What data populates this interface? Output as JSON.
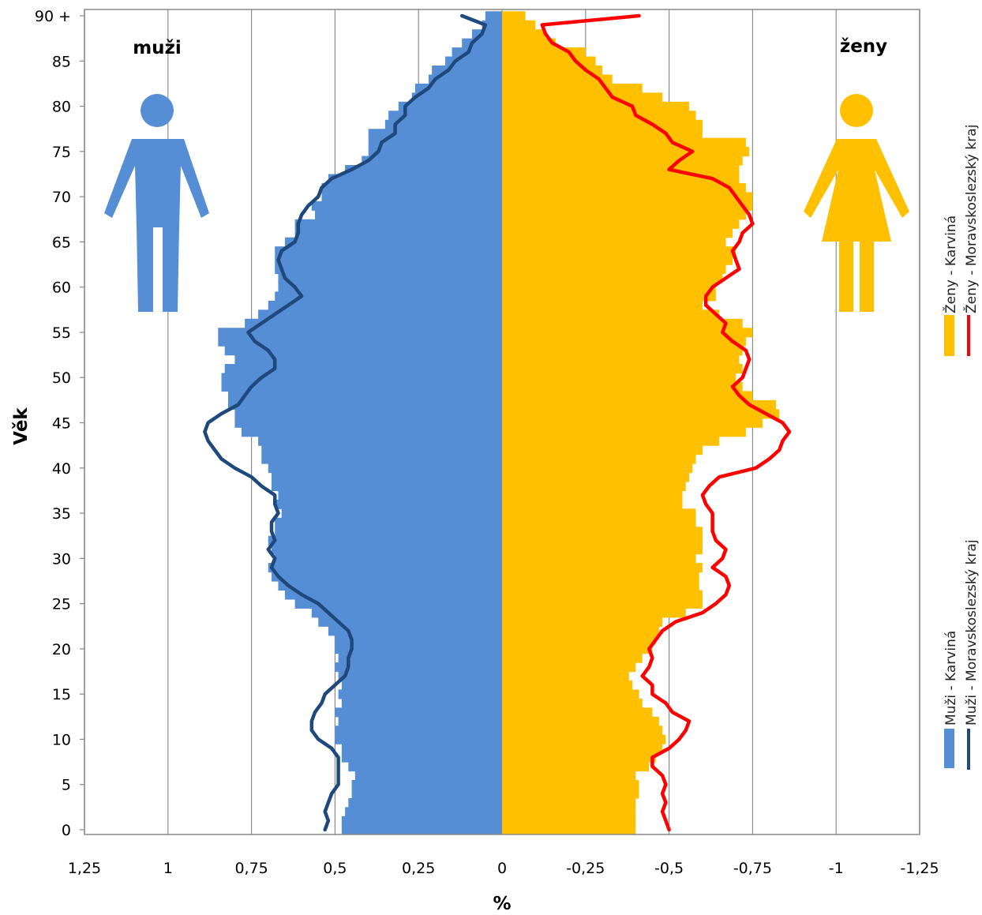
{
  "chart_data": {
    "type": "bar",
    "orientation": "horizontal",
    "ylabel": "Věk",
    "xlabel": "%",
    "left_label": "muži",
    "right_label": "ženy",
    "y_ticks": [
      {
        "age": 0,
        "label": "0"
      },
      {
        "age": 5,
        "label": "5"
      },
      {
        "age": 10,
        "label": "10"
      },
      {
        "age": 15,
        "label": "15"
      },
      {
        "age": 20,
        "label": "20"
      },
      {
        "age": 25,
        "label": "25"
      },
      {
        "age": 30,
        "label": "30"
      },
      {
        "age": 35,
        "label": "35"
      },
      {
        "age": 40,
        "label": "40"
      },
      {
        "age": 45,
        "label": "45"
      },
      {
        "age": 50,
        "label": "50"
      },
      {
        "age": 55,
        "label": "55"
      },
      {
        "age": 60,
        "label": "60"
      },
      {
        "age": 65,
        "label": "65"
      },
      {
        "age": 70,
        "label": "70"
      },
      {
        "age": 75,
        "label": "75"
      },
      {
        "age": 80,
        "label": "80"
      },
      {
        "age": 85,
        "label": "85"
      },
      {
        "age": 90,
        "label": "90 +"
      }
    ],
    "x_ticks": [
      {
        "value": 1.25,
        "label": "1,25"
      },
      {
        "value": 1,
        "label": "1"
      },
      {
        "value": 0.75,
        "label": "0,75"
      },
      {
        "value": 0.5,
        "label": "0,5"
      },
      {
        "value": 0.25,
        "label": "0,25"
      },
      {
        "value": 0,
        "label": "0"
      },
      {
        "value": -0.25,
        "label": "-0,25"
      },
      {
        "value": -0.5,
        "label": "-0,5"
      },
      {
        "value": -0.75,
        "label": "-0,75"
      },
      {
        "value": -1,
        "label": "-1"
      },
      {
        "value": -1.25,
        "label": "-1,25"
      }
    ],
    "xlim": [
      1.25,
      -1.25
    ],
    "ylim": [
      0,
      90
    ],
    "grid": "vertical",
    "legend_position": "right, vertical",
    "colors": {
      "male_bar": "#558ED5",
      "male_line": "#1F497D",
      "female_bar": "#FFC000",
      "female_line": "#FF0000"
    },
    "series": [
      {
        "name": "Muži - Karviná",
        "kind": "bar",
        "side": "left",
        "values": [
          0.48,
          0.48,
          0.47,
          0.46,
          0.45,
          0.45,
          0.44,
          0.46,
          0.48,
          0.48,
          0.5,
          0.5,
          0.49,
          0.5,
          0.48,
          0.49,
          0.48,
          0.49,
          0.5,
          0.49,
          0.5,
          0.5,
          0.52,
          0.55,
          0.57,
          0.62,
          0.65,
          0.67,
          0.69,
          0.7,
          0.68,
          0.69,
          0.7,
          0.68,
          0.68,
          0.66,
          0.68,
          0.67,
          0.69,
          0.69,
          0.7,
          0.72,
          0.72,
          0.73,
          0.78,
          0.8,
          0.8,
          0.82,
          0.82,
          0.84,
          0.84,
          0.83,
          0.8,
          0.83,
          0.85,
          0.85,
          0.77,
          0.73,
          0.7,
          0.68,
          0.67,
          0.67,
          0.68,
          0.68,
          0.68,
          0.65,
          0.62,
          0.62,
          0.56,
          0.57,
          0.54,
          0.54,
          0.52,
          0.47,
          0.42,
          0.4,
          0.4,
          0.4,
          0.35,
          0.34,
          0.31,
          0.27,
          0.26,
          0.22,
          0.21,
          0.17,
          0.15,
          0.12,
          0.09,
          0.06,
          0.05
        ]
      },
      {
        "name": "Muži - Moravskoslezský kraj",
        "kind": "line",
        "side": "left",
        "values": [
          0.53,
          0.52,
          0.53,
          0.52,
          0.51,
          0.49,
          0.49,
          0.49,
          0.49,
          0.51,
          0.55,
          0.57,
          0.57,
          0.56,
          0.54,
          0.53,
          0.5,
          0.47,
          0.46,
          0.46,
          0.45,
          0.45,
          0.46,
          0.49,
          0.52,
          0.55,
          0.6,
          0.64,
          0.67,
          0.69,
          0.68,
          0.7,
          0.68,
          0.69,
          0.69,
          0.67,
          0.68,
          0.68,
          0.72,
          0.75,
          0.8,
          0.84,
          0.86,
          0.88,
          0.89,
          0.88,
          0.84,
          0.79,
          0.77,
          0.75,
          0.72,
          0.68,
          0.68,
          0.7,
          0.74,
          0.76,
          0.72,
          0.68,
          0.64,
          0.6,
          0.62,
          0.65,
          0.66,
          0.67,
          0.66,
          0.62,
          0.61,
          0.61,
          0.6,
          0.58,
          0.55,
          0.54,
          0.51,
          0.45,
          0.4,
          0.37,
          0.36,
          0.32,
          0.32,
          0.29,
          0.29,
          0.26,
          0.22,
          0.2,
          0.16,
          0.14,
          0.1,
          0.09,
          0.06,
          0.05,
          0.12
        ]
      },
      {
        "name": "Ženy - Karviná",
        "kind": "bar",
        "side": "right",
        "values": [
          0.4,
          0.4,
          0.4,
          0.4,
          0.41,
          0.41,
          0.4,
          0.44,
          0.46,
          0.48,
          0.49,
          0.48,
          0.47,
          0.45,
          0.42,
          0.41,
          0.39,
          0.38,
          0.4,
          0.42,
          0.45,
          0.46,
          0.47,
          0.48,
          0.55,
          0.6,
          0.6,
          0.59,
          0.59,
          0.6,
          0.58,
          0.6,
          0.6,
          0.6,
          0.58,
          0.58,
          0.54,
          0.54,
          0.55,
          0.56,
          0.57,
          0.58,
          0.6,
          0.65,
          0.73,
          0.78,
          0.83,
          0.82,
          0.75,
          0.72,
          0.7,
          0.72,
          0.71,
          0.72,
          0.73,
          0.75,
          0.72,
          0.65,
          0.6,
          0.64,
          0.64,
          0.66,
          0.67,
          0.69,
          0.7,
          0.67,
          0.69,
          0.71,
          0.73,
          0.75,
          0.75,
          0.73,
          0.71,
          0.71,
          0.72,
          0.74,
          0.73,
          0.6,
          0.6,
          0.58,
          0.56,
          0.48,
          0.42,
          0.33,
          0.3,
          0.28,
          0.25,
          0.16,
          0.13,
          0.1,
          0.07
        ]
      },
      {
        "name": "Ženy - Moravskoslezský kraj",
        "kind": "line",
        "side": "right",
        "values": [
          0.5,
          0.49,
          0.48,
          0.49,
          0.48,
          0.49,
          0.48,
          0.45,
          0.45,
          0.5,
          0.53,
          0.55,
          0.56,
          0.51,
          0.49,
          0.45,
          0.45,
          0.42,
          0.44,
          0.45,
          0.44,
          0.46,
          0.48,
          0.52,
          0.6,
          0.64,
          0.67,
          0.68,
          0.67,
          0.63,
          0.66,
          0.67,
          0.64,
          0.63,
          0.63,
          0.63,
          0.61,
          0.6,
          0.62,
          0.65,
          0.76,
          0.8,
          0.83,
          0.84,
          0.86,
          0.84,
          0.79,
          0.74,
          0.71,
          0.69,
          0.72,
          0.73,
          0.74,
          0.73,
          0.69,
          0.66,
          0.67,
          0.64,
          0.61,
          0.61,
          0.63,
          0.67,
          0.71,
          0.7,
          0.69,
          0.71,
          0.72,
          0.75,
          0.74,
          0.72,
          0.7,
          0.68,
          0.63,
          0.5,
          0.53,
          0.57,
          0.51,
          0.49,
          0.45,
          0.4,
          0.39,
          0.33,
          0.31,
          0.29,
          0.25,
          0.22,
          0.2,
          0.15,
          0.13,
          0.12,
          0.41
        ]
      }
    ]
  }
}
